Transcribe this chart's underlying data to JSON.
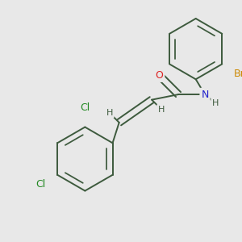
{
  "background_color": "#e8e8e8",
  "bond_color": "#3d5a3d",
  "atom_colors": {
    "N": "#2222cc",
    "O": "#dd2222",
    "Cl": "#228822",
    "Br": "#cc8800",
    "H": "#3d5a3d",
    "C": "#3d5a3d"
  },
  "bond_width": 1.4,
  "font_size": 8.5,
  "figsize": [
    3.0,
    3.0
  ],
  "dpi": 100
}
